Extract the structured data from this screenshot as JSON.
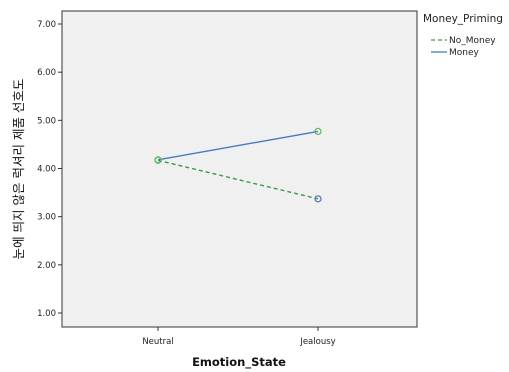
{
  "chart_data": {
    "type": "line",
    "title": "",
    "xlabel": "Emotion_State",
    "ylabel": "눈에 띄지 않은 럭셔리 제품 선호도",
    "categories": [
      "Neutral",
      "Jealousy"
    ],
    "yticks": [
      "1.00",
      "2.00",
      "3.00",
      "4.00",
      "5.00",
      "6.00",
      "7.00"
    ],
    "ylim": [
      0.8,
      7.2
    ],
    "grid": false,
    "legend": {
      "title": "Money_Priming",
      "placement": "right"
    },
    "series": [
      {
        "name": "No_Money",
        "values": [
          4.17,
          3.37
        ],
        "color": "#3a9a4a",
        "line_style": "dashed"
      },
      {
        "name": "Money",
        "values": [
          4.18,
          4.77
        ],
        "color": "#4a78c0",
        "line_style": "solid"
      }
    ],
    "marker_colors": [
      "#5fb860",
      "#4a78c0"
    ],
    "plot_background": "#f0f0f0"
  }
}
